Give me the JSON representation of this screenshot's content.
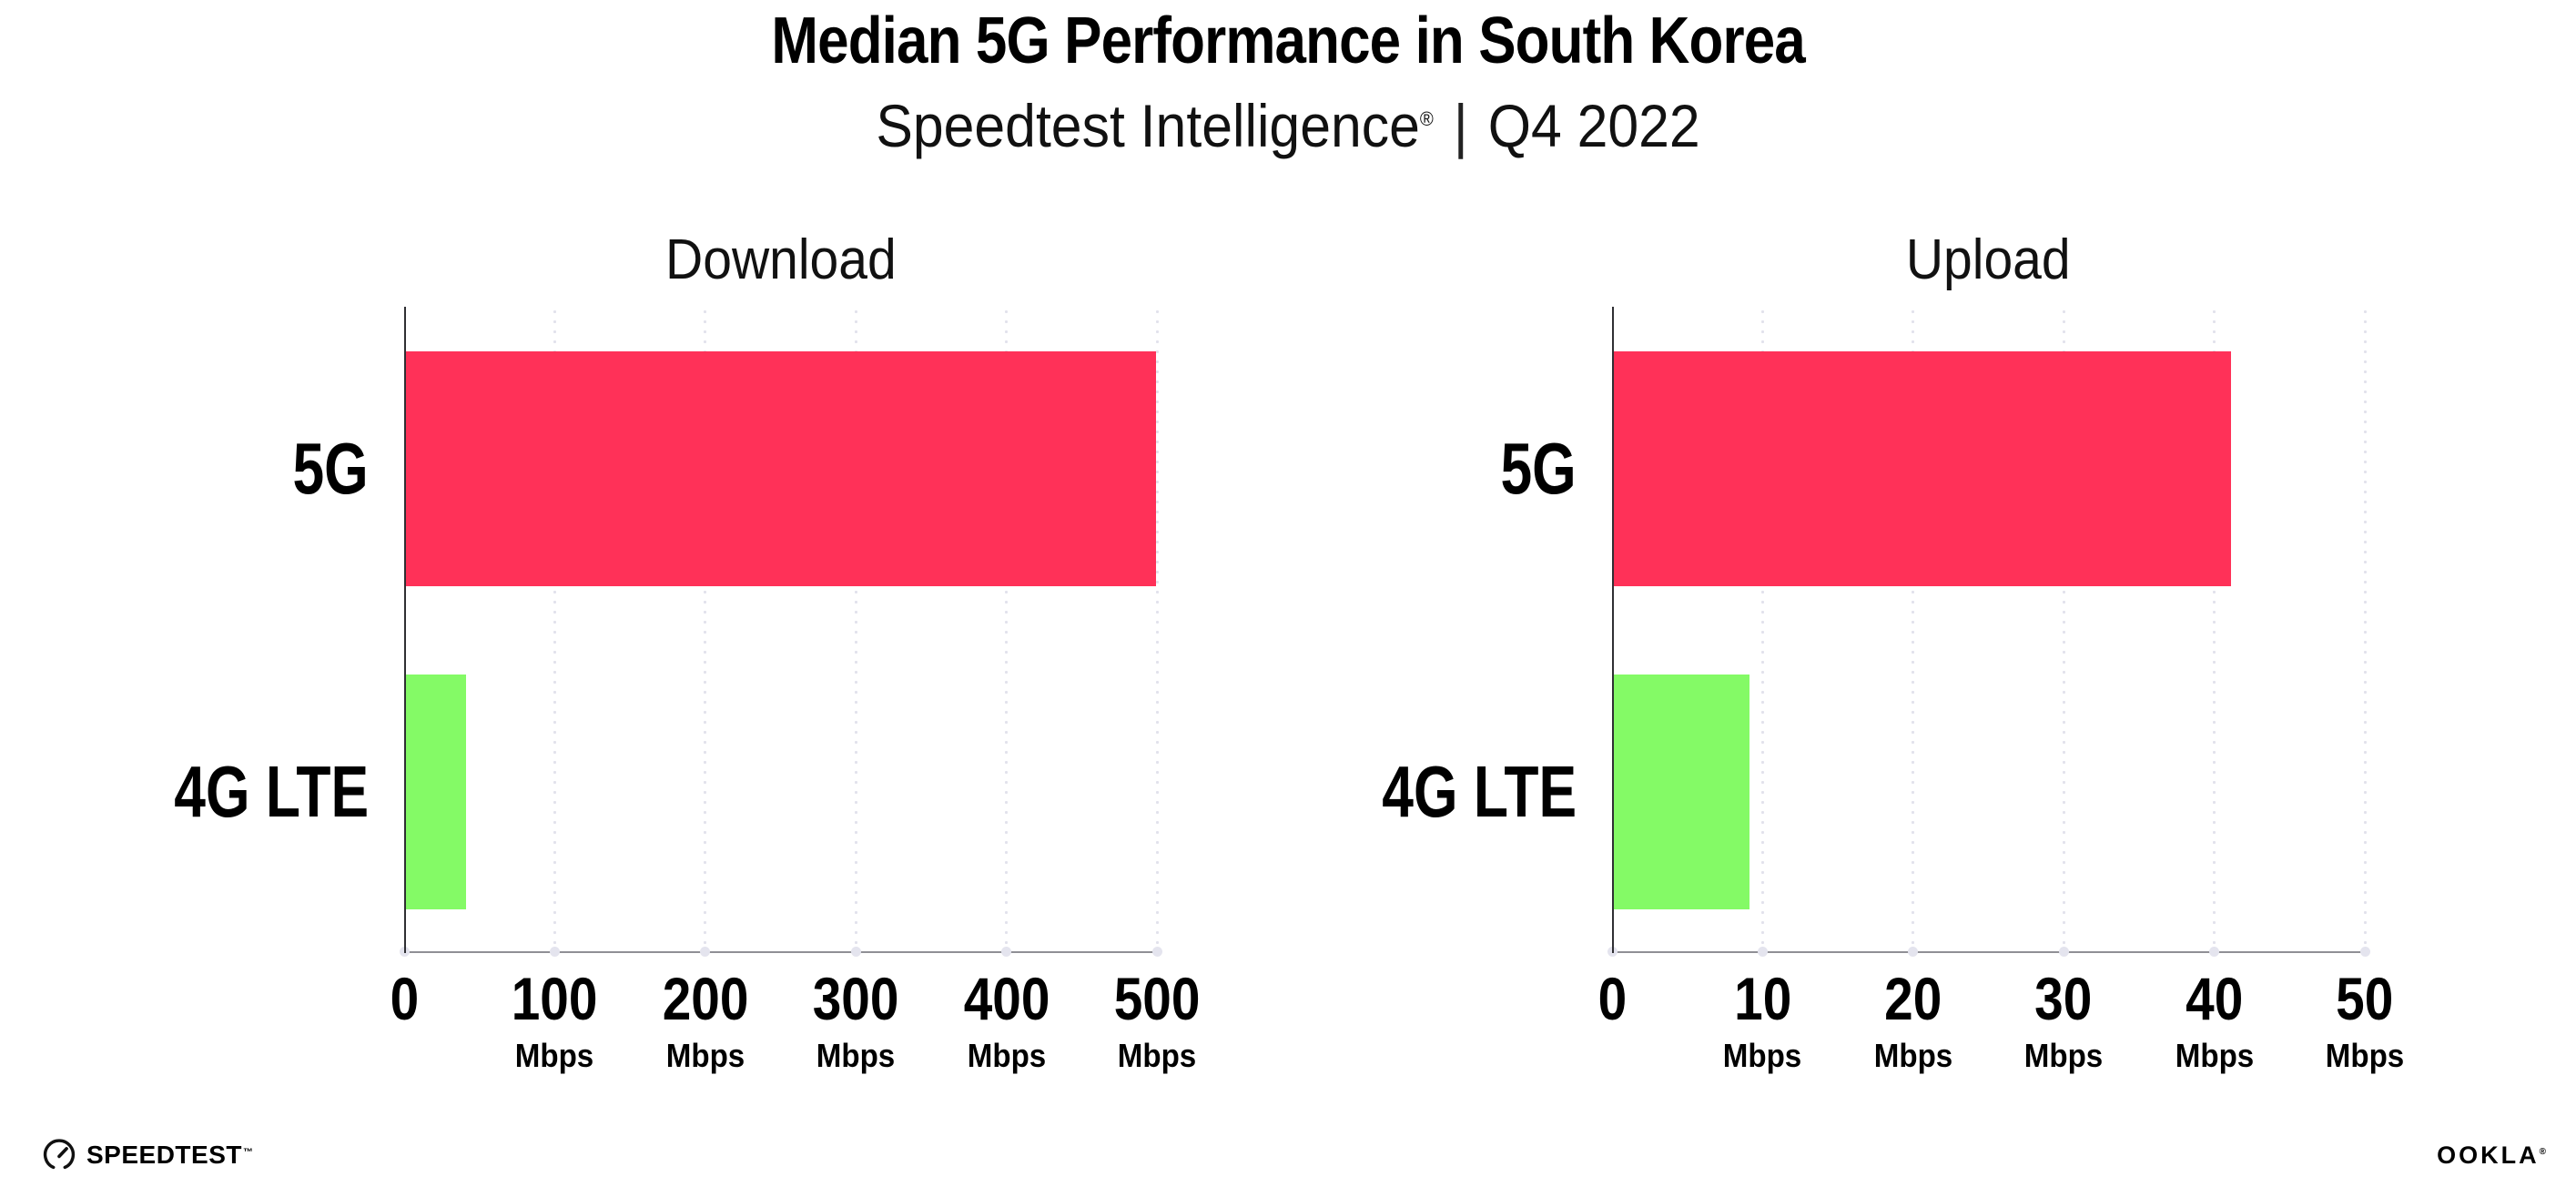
{
  "header": {
    "title": "Median 5G Performance in South Korea",
    "subtitle_brand": "Speedtest Intelligence",
    "subtitle_registered": "®",
    "subtitle_separator": "|",
    "subtitle_period": "Q4 2022"
  },
  "chart_data": [
    {
      "type": "bar",
      "orientation": "horizontal",
      "title": "Download",
      "categories": [
        "5G",
        "4G LTE"
      ],
      "values": [
        498,
        40
      ],
      "unit": "Mbps",
      "xlim": [
        0,
        500
      ],
      "xticks": [
        0,
        100,
        200,
        300,
        400,
        500
      ],
      "bar_colors": [
        "#ff3158",
        "#84fa66"
      ],
      "grid": "vertical dotted gridlines at each tick",
      "legend": "none"
    },
    {
      "type": "bar",
      "orientation": "horizontal",
      "title": "Upload",
      "categories": [
        "5G",
        "4G LTE"
      ],
      "values": [
        41,
        9
      ],
      "unit": "Mbps",
      "xlim": [
        0,
        50
      ],
      "xticks": [
        0,
        10,
        20,
        30,
        40,
        50
      ],
      "bar_colors": [
        "#ff3158",
        "#84fa66"
      ],
      "grid": "vertical dotted gridlines at each tick",
      "legend": "none"
    }
  ],
  "footer": {
    "speedtest_label": "SPEEDTEST",
    "speedtest_trademark": "™",
    "ookla_label": "OOKLA",
    "ookla_registered": "®"
  },
  "colors": {
    "bar_5g": "#ff3158",
    "bar_4g_lte": "#84fa66",
    "y_axis": "#2f2f33",
    "x_axis": "#8f8f95",
    "gridline_dots": "#e2e2ec",
    "text": "#000000",
    "background": "#ffffff"
  }
}
